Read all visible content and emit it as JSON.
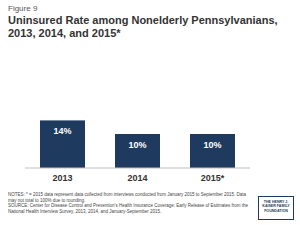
{
  "chart_data": {
    "type": "bar",
    "figure_label": "Figure 9",
    "title": "Uninsured Rate among Nonelderly Pennsylvanians, 2013, 2014, and 2015*",
    "categories": [
      "2013",
      "2014",
      "2015*"
    ],
    "values": [
      14,
      10,
      10
    ],
    "value_labels": [
      "14%",
      "10%",
      "10%"
    ],
    "color": "#1e3a5f",
    "ylim": [
      0,
      20
    ],
    "data_labels": true,
    "tick_labels": "x",
    "grid": false,
    "notes": "NOTES: * = 2015 data represent data collected from interviews conducted from January 2015 to September 2015. Data may not total to 100% due to rounding.",
    "source": "SOURCE: Center for Disease Control and Prevention's Health Insurance Coverage: Early Release of Estimates from the National Health Interview Survey, 2013, 2014, and January-September 2015.",
    "logo": "THE HENRY J. KAISER FAMILY FOUNDATION"
  }
}
